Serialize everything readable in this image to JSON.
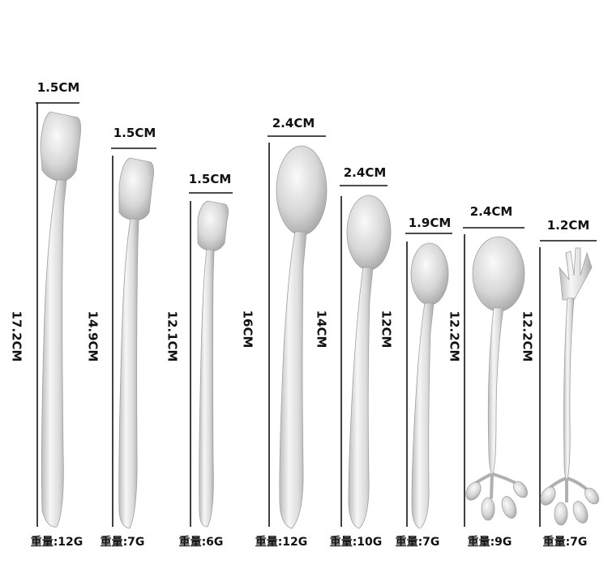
{
  "items": [
    {
      "width": "1.5CM",
      "height": "17.2CM",
      "weight": "重量:12G",
      "kind": "square-spoon"
    },
    {
      "width": "1.5CM",
      "height": "14.9CM",
      "weight": "重量:7G",
      "kind": "square-spoon"
    },
    {
      "width": "1.5CM",
      "height": "12.1CM",
      "weight": "重量:6G",
      "kind": "square-spoon"
    },
    {
      "width": "2.4CM",
      "height": "16CM",
      "weight": "重量:12G",
      "kind": "round-spoon"
    },
    {
      "width": "2.4CM",
      "height": "14CM",
      "weight": "重量:10G",
      "kind": "round-spoon"
    },
    {
      "width": "1.9CM",
      "height": "12CM",
      "weight": "重量:7G",
      "kind": "round-spoon"
    },
    {
      "width": "2.4CM",
      "height": "12.2CM",
      "weight": "重量:9G",
      "kind": "leaf-spoon"
    },
    {
      "width": "1.2CM",
      "height": "12.2CM",
      "weight": "重量:7G",
      "kind": "leaf-fork"
    }
  ],
  "colors": {
    "line": "#111111",
    "metal_light": "#f4f4f4",
    "metal_dark": "#b9b9b9",
    "text": "#111111"
  }
}
